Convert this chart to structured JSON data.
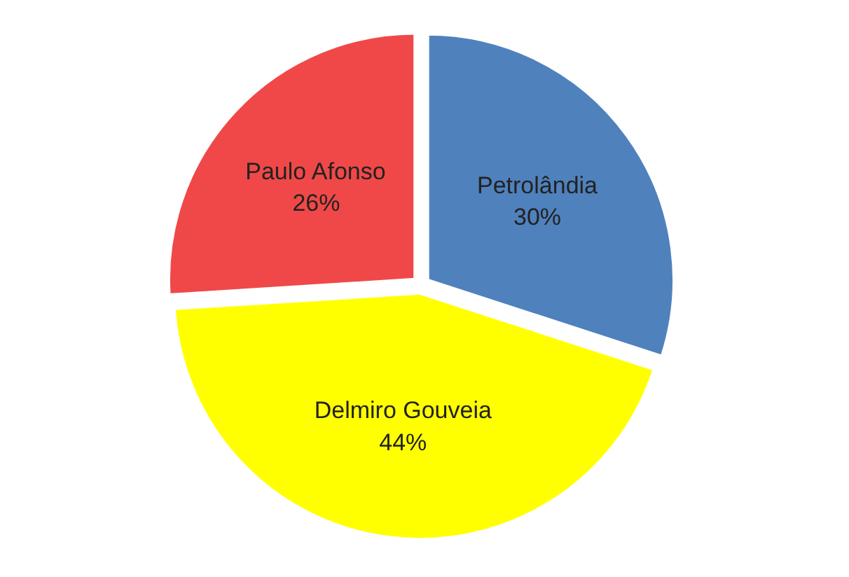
{
  "chart_data": {
    "type": "pie",
    "categories": [
      "Petrolândia",
      "Delmiro Gouveia",
      "Paulo Afonso"
    ],
    "values": [
      30,
      44,
      26
    ],
    "colors": [
      "#4f81bd",
      "#ffff00",
      "#f04848"
    ],
    "value_labels": [
      "30%",
      "44%",
      "26%"
    ]
  }
}
